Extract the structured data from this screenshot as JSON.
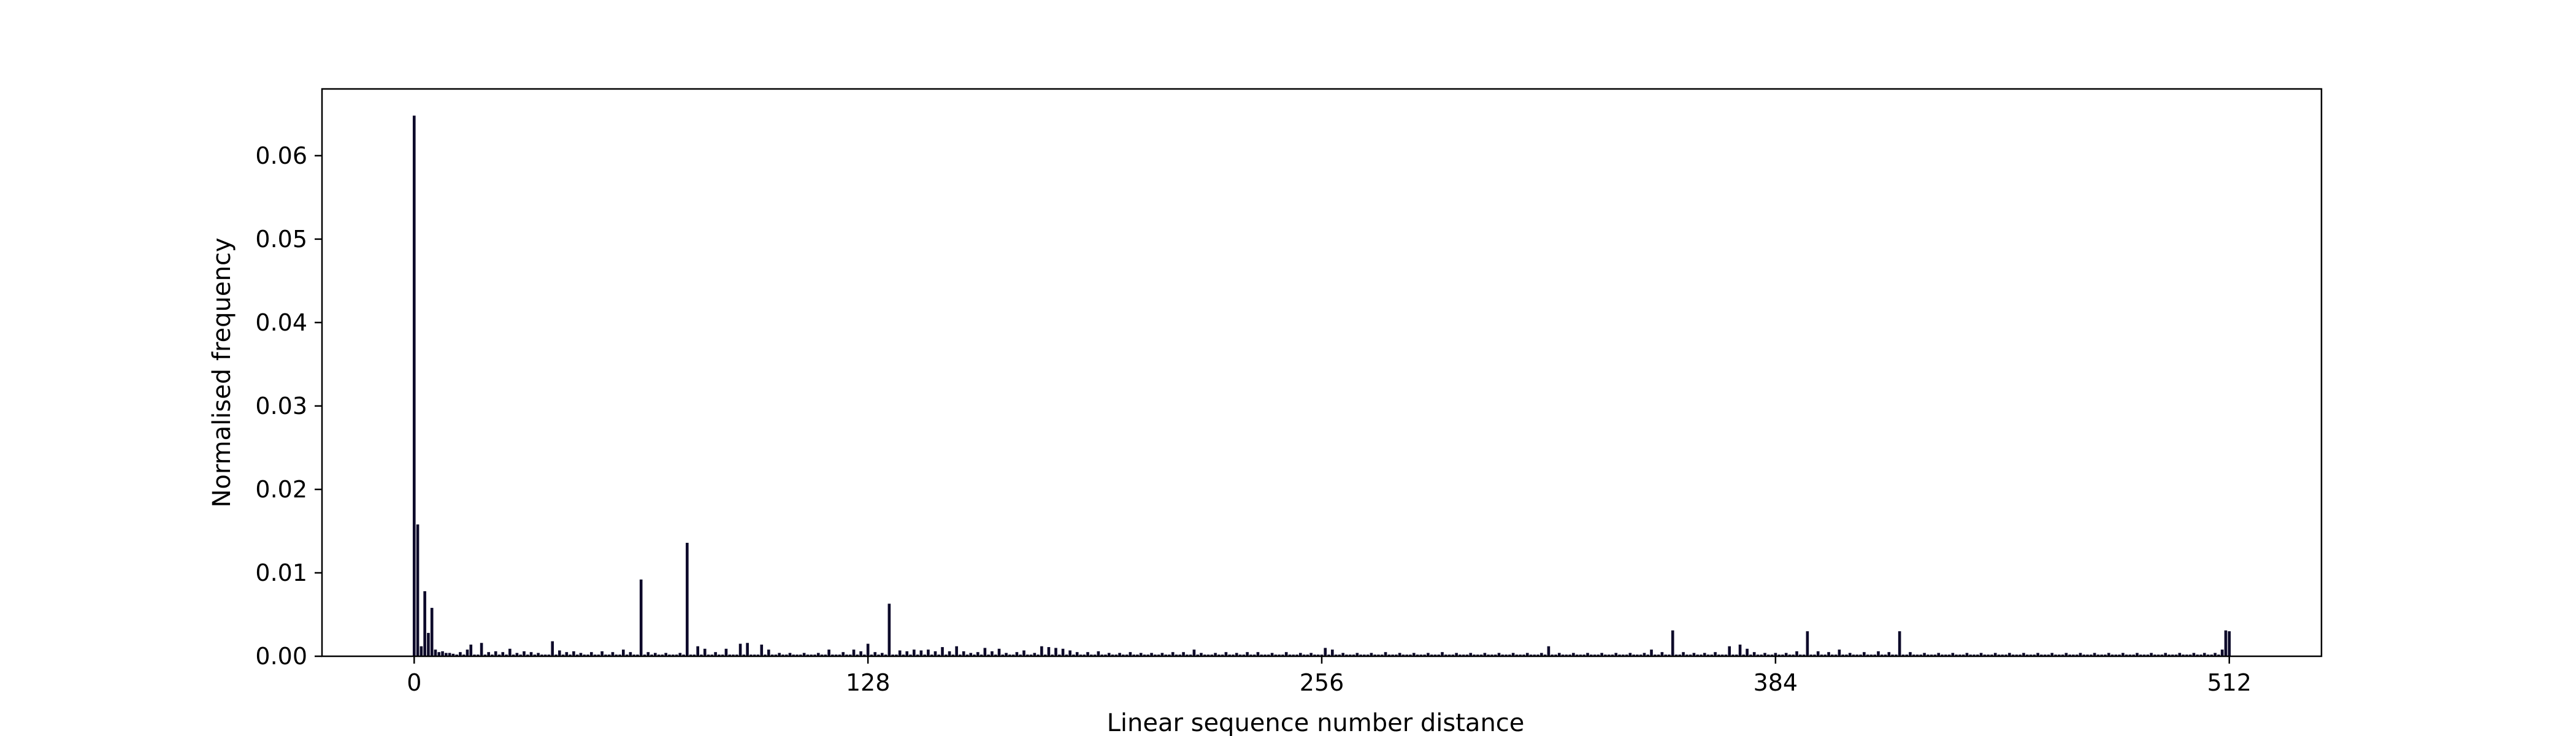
{
  "chart_data": {
    "type": "bar",
    "title": "",
    "xlabel": "Linear sequence number distance",
    "ylabel": "Normalised frequency",
    "xlim": [
      -26,
      538
    ],
    "ylim": [
      0,
      0.068
    ],
    "x_ticks": [
      0,
      128,
      256,
      384,
      512
    ],
    "y_ticks": [
      0.0,
      0.01,
      0.02,
      0.03,
      0.04,
      0.05,
      0.06
    ],
    "y_tick_labels": [
      "0.00",
      "0.01",
      "0.02",
      "0.03",
      "0.04",
      "0.05",
      "0.06"
    ],
    "grid": false,
    "legend": "none",
    "bar_width": 0.8,
    "bar_color": "#0d0a2a",
    "x_range": [
      0,
      512
    ],
    "baseline_value": 0.0002,
    "values": [
      [
        0,
        0.0648
      ],
      [
        1,
        0.0158
      ],
      [
        2,
        0.0012
      ],
      [
        3,
        0.0078
      ],
      [
        4,
        0.0028
      ],
      [
        5,
        0.0058
      ],
      [
        6,
        0.0008
      ],
      [
        7,
        0.0005
      ],
      [
        8,
        0.0006
      ],
      [
        9,
        0.0004
      ],
      [
        10,
        0.0004
      ],
      [
        11,
        0.0003
      ],
      [
        13,
        0.0005
      ],
      [
        15,
        0.0008
      ],
      [
        16,
        0.0014
      ],
      [
        19,
        0.0016
      ],
      [
        21,
        0.0005
      ],
      [
        23,
        0.0006
      ],
      [
        25,
        0.0005
      ],
      [
        27,
        0.0009
      ],
      [
        29,
        0.0004
      ],
      [
        31,
        0.0006
      ],
      [
        33,
        0.0005
      ],
      [
        35,
        0.0004
      ],
      [
        39,
        0.0018
      ],
      [
        41,
        0.0007
      ],
      [
        43,
        0.0005
      ],
      [
        45,
        0.0006
      ],
      [
        47,
        0.0004
      ],
      [
        50,
        0.0005
      ],
      [
        53,
        0.0006
      ],
      [
        56,
        0.0005
      ],
      [
        59,
        0.0008
      ],
      [
        61,
        0.0005
      ],
      [
        64,
        0.0092
      ],
      [
        66,
        0.0005
      ],
      [
        68,
        0.0004
      ],
      [
        71,
        0.0004
      ],
      [
        75,
        0.0004
      ],
      [
        77,
        0.0136
      ],
      [
        80,
        0.0012
      ],
      [
        82,
        0.0009
      ],
      [
        85,
        0.0005
      ],
      [
        88,
        0.0009
      ],
      [
        92,
        0.0015
      ],
      [
        94,
        0.0016
      ],
      [
        98,
        0.0014
      ],
      [
        100,
        0.0008
      ],
      [
        103,
        0.0004
      ],
      [
        106,
        0.0004
      ],
      [
        110,
        0.0004
      ],
      [
        114,
        0.0004
      ],
      [
        117,
        0.0008
      ],
      [
        121,
        0.0005
      ],
      [
        124,
        0.0008
      ],
      [
        126,
        0.0006
      ],
      [
        128,
        0.0015
      ],
      [
        130,
        0.0005
      ],
      [
        132,
        0.0004
      ],
      [
        134,
        0.0063
      ],
      [
        137,
        0.0007
      ],
      [
        139,
        0.0006
      ],
      [
        141,
        0.0008
      ],
      [
        143,
        0.0007
      ],
      [
        145,
        0.0008
      ],
      [
        147,
        0.0006
      ],
      [
        149,
        0.0011
      ],
      [
        151,
        0.0006
      ],
      [
        153,
        0.0012
      ],
      [
        155,
        0.0006
      ],
      [
        157,
        0.0004
      ],
      [
        159,
        0.0005
      ],
      [
        161,
        0.001
      ],
      [
        163,
        0.0006
      ],
      [
        165,
        0.0009
      ],
      [
        167,
        0.0004
      ],
      [
        170,
        0.0005
      ],
      [
        172,
        0.0007
      ],
      [
        175,
        0.0004
      ],
      [
        177,
        0.0012
      ],
      [
        179,
        0.0011
      ],
      [
        181,
        0.001
      ],
      [
        183,
        0.0009
      ],
      [
        185,
        0.0007
      ],
      [
        187,
        0.0005
      ],
      [
        190,
        0.0005
      ],
      [
        193,
        0.0006
      ],
      [
        196,
        0.0004
      ],
      [
        199,
        0.0004
      ],
      [
        202,
        0.0005
      ],
      [
        205,
        0.0004
      ],
      [
        208,
        0.0004
      ],
      [
        211,
        0.0004
      ],
      [
        214,
        0.0005
      ],
      [
        217,
        0.0005
      ],
      [
        220,
        0.0008
      ],
      [
        222,
        0.0004
      ],
      [
        226,
        0.0004
      ],
      [
        229,
        0.0005
      ],
      [
        232,
        0.0004
      ],
      [
        235,
        0.0005
      ],
      [
        238,
        0.0005
      ],
      [
        242,
        0.0004
      ],
      [
        246,
        0.0005
      ],
      [
        250,
        0.0004
      ],
      [
        253,
        0.0004
      ],
      [
        257,
        0.001
      ],
      [
        259,
        0.0008
      ],
      [
        262,
        0.0004
      ],
      [
        266,
        0.0004
      ],
      [
        270,
        0.0004
      ],
      [
        274,
        0.0005
      ],
      [
        278,
        0.0004
      ],
      [
        282,
        0.0004
      ],
      [
        286,
        0.0004
      ],
      [
        290,
        0.0005
      ],
      [
        294,
        0.0004
      ],
      [
        298,
        0.0004
      ],
      [
        302,
        0.0004
      ],
      [
        306,
        0.0004
      ],
      [
        310,
        0.0004
      ],
      [
        314,
        0.0004
      ],
      [
        318,
        0.0004
      ],
      [
        320,
        0.0012
      ],
      [
        323,
        0.0004
      ],
      [
        327,
        0.0004
      ],
      [
        331,
        0.0004
      ],
      [
        335,
        0.0004
      ],
      [
        339,
        0.0004
      ],
      [
        343,
        0.0004
      ],
      [
        347,
        0.0004
      ],
      [
        349,
        0.0008
      ],
      [
        352,
        0.0005
      ],
      [
        355,
        0.0031
      ],
      [
        358,
        0.0005
      ],
      [
        361,
        0.0004
      ],
      [
        364,
        0.0004
      ],
      [
        367,
        0.0005
      ],
      [
        371,
        0.0012
      ],
      [
        374,
        0.0014
      ],
      [
        376,
        0.0009
      ],
      [
        378,
        0.0005
      ],
      [
        381,
        0.0004
      ],
      [
        384,
        0.0004
      ],
      [
        387,
        0.0004
      ],
      [
        390,
        0.0006
      ],
      [
        393,
        0.003
      ],
      [
        396,
        0.0006
      ],
      [
        399,
        0.0005
      ],
      [
        402,
        0.0008
      ],
      [
        405,
        0.0004
      ],
      [
        409,
        0.0005
      ],
      [
        413,
        0.0006
      ],
      [
        416,
        0.0005
      ],
      [
        419,
        0.003
      ],
      [
        422,
        0.0005
      ],
      [
        426,
        0.0004
      ],
      [
        430,
        0.0004
      ],
      [
        434,
        0.0004
      ],
      [
        438,
        0.0004
      ],
      [
        442,
        0.0004
      ],
      [
        446,
        0.0004
      ],
      [
        450,
        0.0004
      ],
      [
        454,
        0.0004
      ],
      [
        458,
        0.0004
      ],
      [
        462,
        0.0004
      ],
      [
        466,
        0.0004
      ],
      [
        470,
        0.0004
      ],
      [
        474,
        0.0004
      ],
      [
        478,
        0.0004
      ],
      [
        482,
        0.0004
      ],
      [
        486,
        0.0004
      ],
      [
        490,
        0.0004
      ],
      [
        494,
        0.0004
      ],
      [
        498,
        0.0004
      ],
      [
        502,
        0.0004
      ],
      [
        505,
        0.0004
      ],
      [
        508,
        0.0004
      ],
      [
        510,
        0.0008
      ],
      [
        511,
        0.0031
      ],
      [
        512,
        0.003
      ]
    ]
  }
}
